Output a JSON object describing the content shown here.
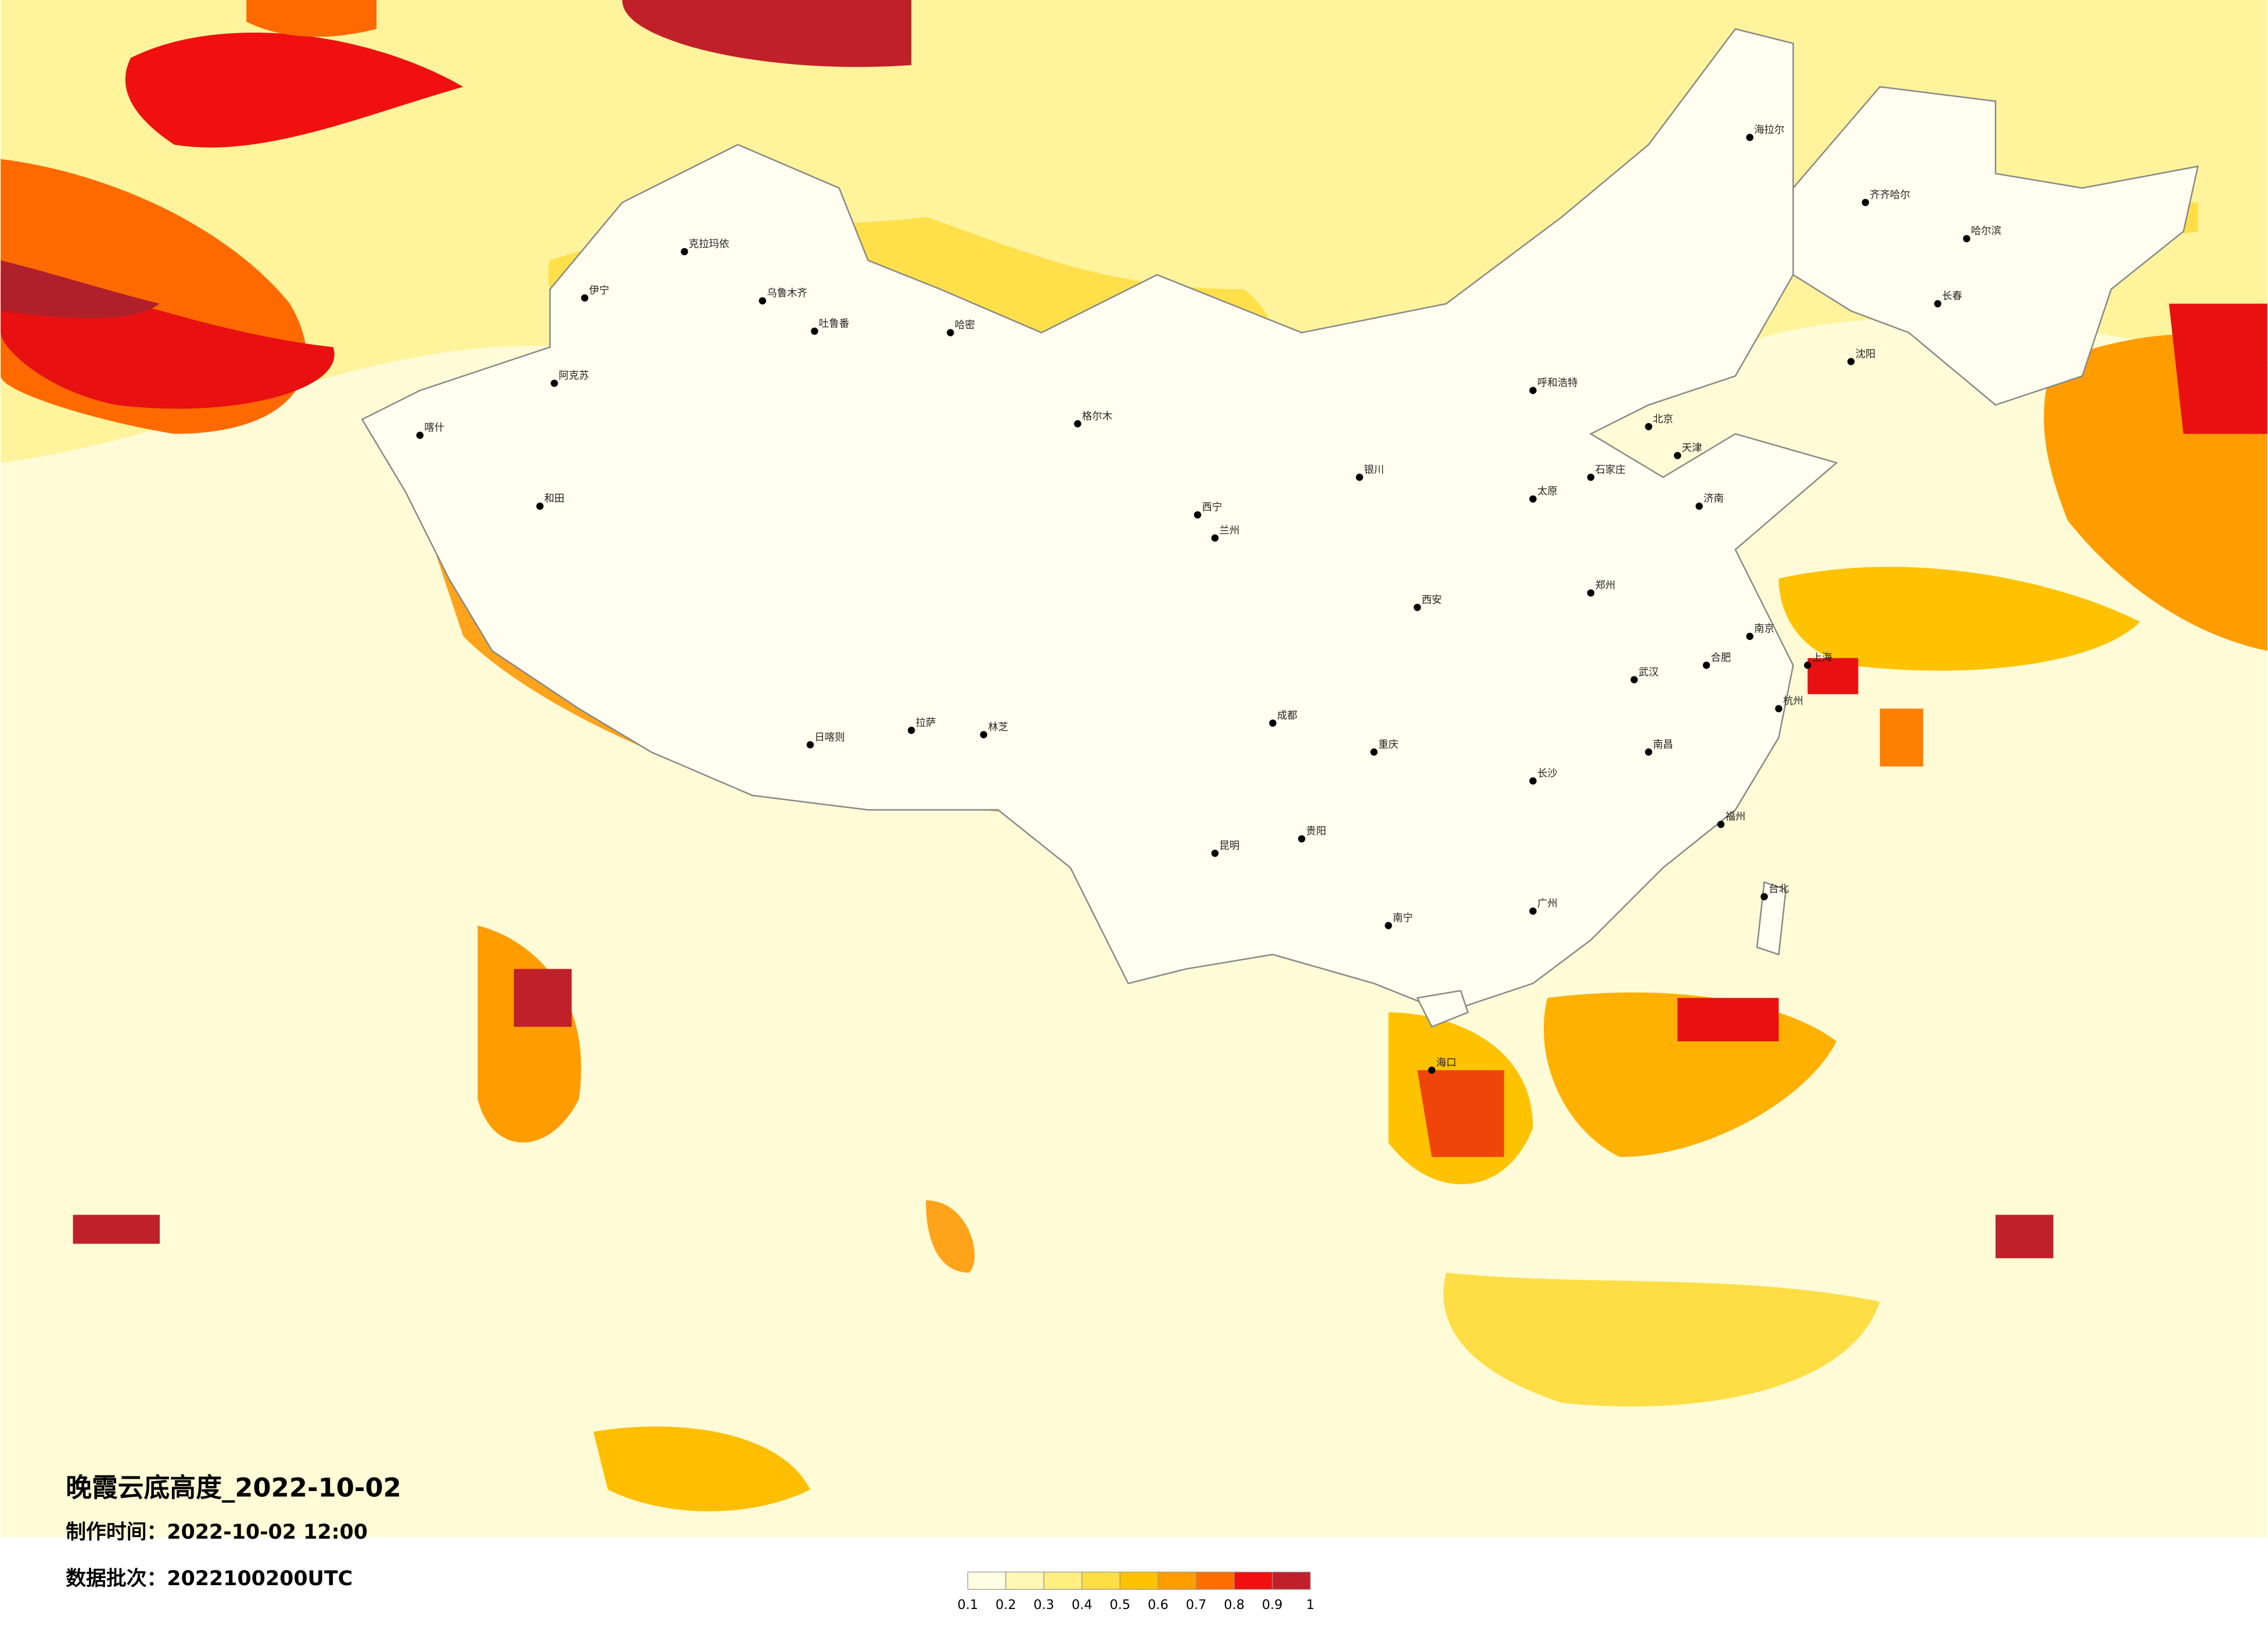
{
  "header": {
    "title": "晚霞云底高度_2022-10-02",
    "made_time": "制作时间：2022-10-02 12:00",
    "batch": "数据批次：2022100200UTC"
  },
  "legend": {
    "ticks": [
      0.1,
      0.2,
      0.3,
      0.4,
      0.5,
      0.6,
      0.7,
      0.8,
      0.9,
      1
    ],
    "colors": [
      "#fffde2",
      "#fff7b5",
      "#ffee80",
      "#ffdd44",
      "#ffc200",
      "#ff9d00",
      "#ff6e00",
      "#f01010",
      "#c0202a"
    ]
  },
  "cities": [
    "克拉玛依",
    "乌鲁木齐",
    "吐鲁番",
    "哈密",
    "伊宁",
    "阿克苏",
    "喀什",
    "和田",
    "格尔木",
    "拉萨",
    "日喀则",
    "林芝",
    "西宁",
    "兰州",
    "银川",
    "呼和浩特",
    "北京",
    "天津",
    "石家庄",
    "太原",
    "济南",
    "郑州",
    "西安",
    "成都",
    "重庆",
    "昆明",
    "贵阳",
    "南宁",
    "广州",
    "长沙",
    "武汉",
    "南昌",
    "合肥",
    "南京",
    "上海",
    "杭州",
    "福州",
    "台北",
    "海口",
    "沈阳",
    "长春",
    "哈尔滨",
    "齐齐哈尔",
    "海拉尔"
  ]
}
